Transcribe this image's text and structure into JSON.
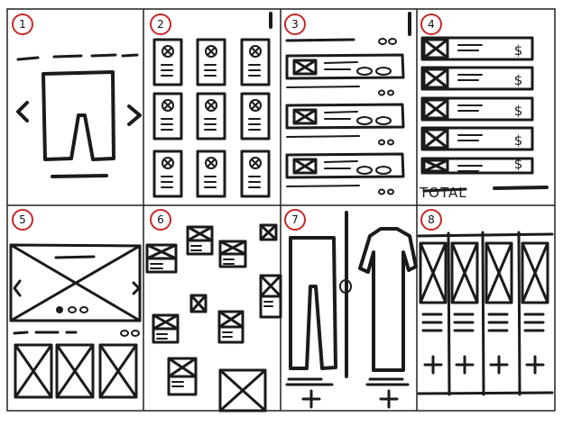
{
  "panels": [
    {
      "number": "1",
      "screen": "product-detail"
    },
    {
      "number": "2",
      "screen": "product-grid"
    },
    {
      "number": "3",
      "screen": "product-list"
    },
    {
      "number": "4",
      "screen": "cart-with-prices"
    },
    {
      "number": "5",
      "screen": "carousel-home"
    },
    {
      "number": "6",
      "screen": "scattered-collage"
    },
    {
      "number": "7",
      "screen": "split-compare"
    },
    {
      "number": "8",
      "screen": "column-gallery"
    }
  ],
  "cart": {
    "price_symbol": "$",
    "total_label": "TOTAL"
  },
  "colors": {
    "ink": "#1b1b1b",
    "badge_outline": "#c62828",
    "grid_line": "#222222",
    "background": "#ffffff"
  }
}
